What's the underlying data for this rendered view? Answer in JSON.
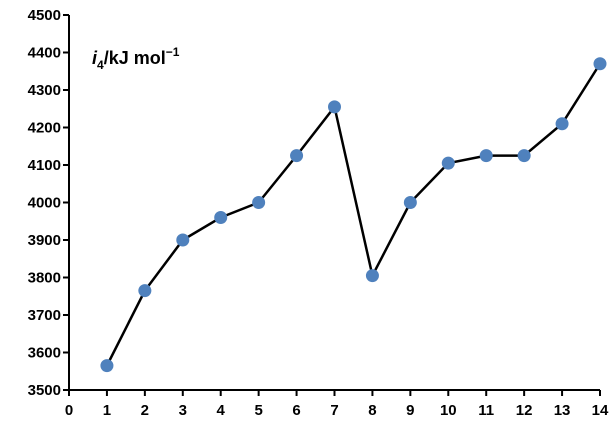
{
  "chart_data": {
    "type": "line",
    "title": "",
    "xlabel": "",
    "ylabel": {
      "italic": "i",
      "subscript": "4",
      "unit": "/kJ mol",
      "superscript": "−1"
    },
    "x": [
      1,
      2,
      3,
      4,
      5,
      6,
      7,
      8,
      9,
      10,
      11,
      12,
      13,
      14
    ],
    "series": [
      {
        "values": [
          3565,
          3765,
          3900,
          3960,
          4000,
          4125,
          4255,
          3805,
          4000,
          4105,
          4125,
          4125,
          4210,
          4370
        ]
      }
    ],
    "xlim": [
      0,
      14
    ],
    "ylim": [
      3500,
      4500
    ],
    "x_ticks": [
      0,
      1,
      2,
      3,
      4,
      5,
      6,
      7,
      8,
      9,
      10,
      11,
      12,
      13,
      14
    ],
    "y_ticks": [
      3500,
      3600,
      3700,
      3800,
      3900,
      4000,
      4100,
      4200,
      4300,
      4400,
      4500
    ],
    "grid": false,
    "legend": "none",
    "line_color": "#000000",
    "marker_color": "#4f81bd"
  }
}
